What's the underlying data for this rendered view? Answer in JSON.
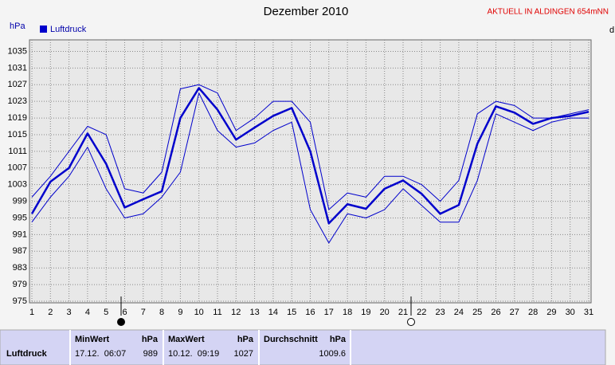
{
  "chart_data": {
    "type": "line",
    "title": "Dezember 2010",
    "subtitle": "AKTUELL IN ALDINGEN 654mNN",
    "y_label": "hPa",
    "right_label": "d",
    "x": [
      1,
      2,
      3,
      4,
      5,
      6,
      7,
      8,
      9,
      10,
      11,
      12,
      13,
      14,
      15,
      16,
      17,
      18,
      19,
      20,
      21,
      22,
      23,
      24,
      25,
      26,
      27,
      28,
      29,
      30,
      31
    ],
    "xlim": [
      1,
      31
    ],
    "xticks": [
      1,
      2,
      3,
      4,
      5,
      6,
      7,
      8,
      9,
      10,
      11,
      12,
      13,
      14,
      15,
      16,
      17,
      18,
      19,
      20,
      21,
      22,
      23,
      24,
      25,
      26,
      27,
      28,
      29,
      30,
      31
    ],
    "ylim": [
      975,
      1037
    ],
    "yticks": [
      975,
      979,
      983,
      987,
      991,
      995,
      999,
      1003,
      1007,
      1011,
      1015,
      1019,
      1023,
      1027,
      1031,
      1035
    ],
    "grid": true,
    "legend": "top-left",
    "series": [
      {
        "name": "Luftdruck",
        "color": "#0000cc",
        "values": [
          996,
          1003.7,
          1007,
          1015.3,
          1008,
          997.5,
          999.5,
          1001.4,
          1019,
          1026.2,
          1021,
          1013.8,
          1016.7,
          1019.5,
          1021.4,
          1011,
          993.7,
          998.3,
          997.2,
          1002,
          1004,
          1000.8,
          996,
          998.1,
          1012.8,
          1021.8,
          1020.3,
          1017.6,
          1019,
          1019.5,
          1020.5
        ]
      },
      {
        "color": "#0000cc",
        "values": [
          1000,
          1005,
          1011,
          1017,
          1015,
          1002,
          1001,
          1006,
          1026,
          1027,
          1025,
          1016,
          1019,
          1023,
          1023,
          1018,
          997,
          1001,
          1000,
          1005,
          1005,
          1003,
          999,
          1004,
          1020,
          1023,
          1022,
          1019,
          1019,
          1020,
          1021
        ]
      },
      {
        "color": "#0000cc",
        "values": [
          994,
          1000,
          1005,
          1012,
          1002,
          995,
          996,
          1000,
          1006,
          1025,
          1016,
          1012,
          1013,
          1016,
          1018,
          997,
          989,
          996,
          995,
          997,
          1002,
          998,
          994,
          994,
          1004,
          1020,
          1018,
          1016,
          1018,
          1019,
          1019
        ]
      }
    ]
  },
  "table": {
    "header": [
      "MinWert",
      "hPa",
      "MaxWert",
      "hPa",
      "Durchschnitt",
      "hPa"
    ],
    "rows": [
      [
        "Luftdruck",
        "17.12.  06:07",
        "989",
        "10.12.  09:19",
        "1027",
        "1009.6"
      ]
    ]
  }
}
